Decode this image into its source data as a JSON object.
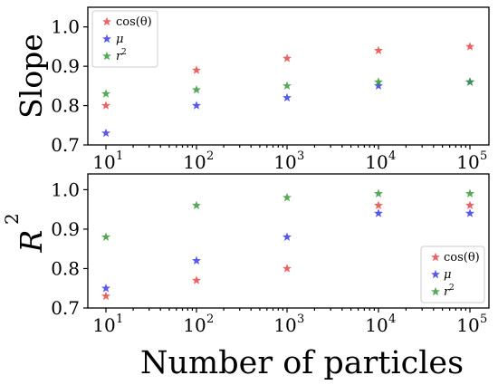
{
  "chart_data": [
    {
      "type": "scatter",
      "ylabel": "Slope",
      "xlabel": "",
      "x": [
        10,
        100,
        1000,
        10000,
        100000
      ],
      "xscale": "log",
      "x_tick_labels": [
        {
          "base": "10",
          "exp": "1"
        },
        {
          "base": "10",
          "exp": "2"
        },
        {
          "base": "10",
          "exp": "3"
        },
        {
          "base": "10",
          "exp": "4"
        },
        {
          "base": "10",
          "exp": "5"
        }
      ],
      "ylim": [
        0.7,
        1.05
      ],
      "y_ticks": [
        0.7,
        0.8,
        0.9,
        1.0
      ],
      "y_tick_labels": [
        "0.7",
        "0.8",
        "0.9",
        "1.0"
      ],
      "legend_position": "top-left",
      "marker": "star",
      "series": [
        {
          "name": "cos(θ)",
          "color": "#e8484a",
          "values": [
            0.8,
            0.89,
            0.92,
            0.94,
            0.95
          ]
        },
        {
          "name": "μ",
          "color": "#3b3be6",
          "values": [
            0.73,
            0.8,
            0.82,
            0.85,
            0.86
          ]
        },
        {
          "name": "r2",
          "color": "#3a9a3a",
          "values": [
            0.83,
            0.84,
            0.85,
            0.86,
            0.86
          ]
        }
      ]
    },
    {
      "type": "scatter",
      "ylabel": "R2",
      "xlabel": "Number of particles",
      "x": [
        10,
        100,
        1000,
        10000,
        100000
      ],
      "xscale": "log",
      "x_tick_labels": [
        {
          "base": "10",
          "exp": "1"
        },
        {
          "base": "10",
          "exp": "2"
        },
        {
          "base": "10",
          "exp": "3"
        },
        {
          "base": "10",
          "exp": "4"
        },
        {
          "base": "10",
          "exp": "5"
        }
      ],
      "ylim": [
        0.7,
        1.04
      ],
      "y_ticks": [
        0.7,
        0.8,
        0.9,
        1.0
      ],
      "y_tick_labels": [
        "0.7",
        "0.8",
        "0.9",
        "1.0"
      ],
      "legend_position": "bottom-right",
      "marker": "star",
      "series": [
        {
          "name": "cos(θ)",
          "color": "#e8484a",
          "values": [
            0.73,
            0.77,
            0.8,
            0.96,
            0.96
          ]
        },
        {
          "name": "μ",
          "color": "#3b3be6",
          "values": [
            0.75,
            0.82,
            0.88,
            0.94,
            0.94
          ]
        },
        {
          "name": "r2",
          "color": "#3a9a3a",
          "values": [
            0.88,
            0.96,
            0.98,
            0.99,
            0.99
          ]
        }
      ]
    }
  ]
}
